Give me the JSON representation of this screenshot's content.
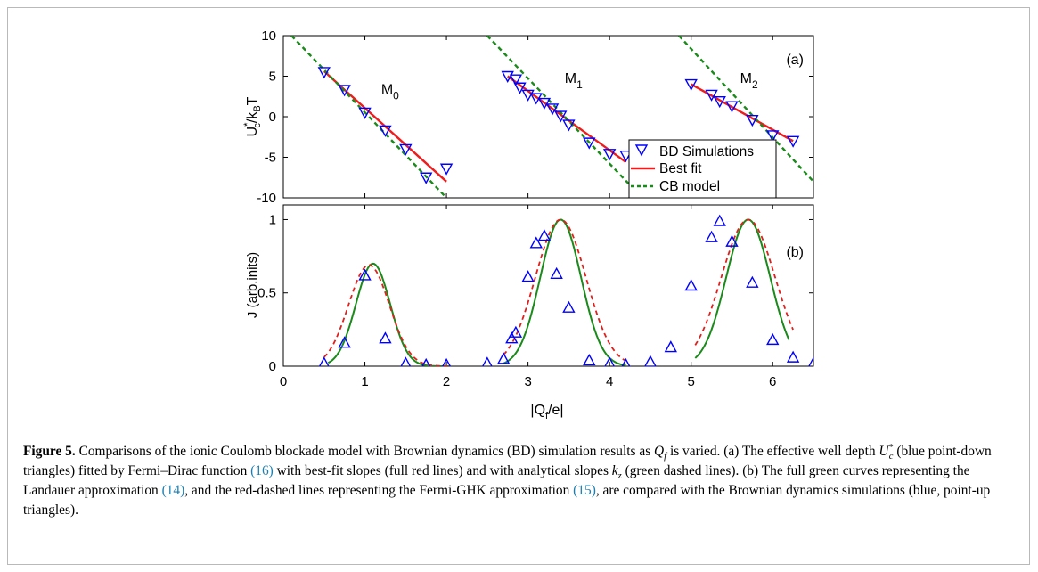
{
  "chart_data": [
    {
      "type": "line",
      "panel_label": "(a)",
      "ylabel_main": "U",
      "ylabel_sup": "*",
      "ylabel_sub": "c",
      "ylabel_rest": "/k",
      "ylabel_sub2": "B",
      "ylabel_end": "T",
      "xlim": [
        0,
        6.5
      ],
      "ylim": [
        -10,
        10
      ],
      "yticks": [
        "10",
        "5",
        "0",
        "-5",
        "-10"
      ],
      "ytick_values": [
        10,
        5,
        0,
        -5,
        -10
      ],
      "annotations": [
        {
          "base": "M",
          "sub": "0",
          "x": 1.2,
          "y": 2.8
        },
        {
          "base": "M",
          "sub": "1",
          "x": 3.45,
          "y": 4.2
        },
        {
          "base": "M",
          "sub": "2",
          "x": 5.6,
          "y": 4.2
        }
      ],
      "series": [
        {
          "name": "BD Simulations",
          "kind": "marker-down",
          "color": "#0000ff",
          "points": [
            [
              0.5,
              5.5
            ],
            [
              0.75,
              3.3
            ],
            [
              1.0,
              0.5
            ],
            [
              1.25,
              -1.7
            ],
            [
              1.5,
              -4.0
            ],
            [
              1.75,
              -7.5
            ],
            [
              2.0,
              -6.4
            ],
            [
              2.75,
              5.0
            ],
            [
              2.85,
              4.6
            ],
            [
              2.9,
              3.6
            ],
            [
              3.0,
              2.7
            ],
            [
              3.1,
              2.3
            ],
            [
              3.2,
              1.7
            ],
            [
              3.3,
              1.0
            ],
            [
              3.4,
              0.1
            ],
            [
              3.5,
              -1.0
            ],
            [
              3.75,
              -3.2
            ],
            [
              4.0,
              -4.6
            ],
            [
              4.2,
              -4.8
            ],
            [
              5.0,
              4.0
            ],
            [
              5.25,
              2.7
            ],
            [
              5.35,
              1.9
            ],
            [
              5.5,
              1.3
            ],
            [
              5.75,
              -0.4
            ],
            [
              6.0,
              -2.3
            ],
            [
              6.25,
              -3.0
            ]
          ]
        },
        {
          "name": "Best fit",
          "kind": "line",
          "color": "#ee1c1c",
          "segments": [
            [
              [
                0.5,
                5.6
              ],
              [
                2.0,
                -8.0
              ]
            ],
            [
              [
                2.75,
                5.0
              ],
              [
                4.2,
                -5.6
              ]
            ],
            [
              [
                5.0,
                4.0
              ],
              [
                6.25,
                -3.0
              ]
            ]
          ]
        },
        {
          "name": "CB model",
          "kind": "dashed",
          "color": "#1a8a1a",
          "segments": [
            [
              [
                0.1,
                10.0
              ],
              [
                2.0,
                -10.0
              ]
            ],
            [
              [
                2.5,
                10.0
              ],
              [
                4.4,
                -10.0
              ]
            ],
            [
              [
                4.85,
                10.0
              ],
              [
                6.5,
                -8.0
              ]
            ]
          ]
        }
      ],
      "legend": {
        "position": "bottom-right",
        "entries": [
          "BD Simulations",
          "Best fit",
          "CB model"
        ]
      }
    },
    {
      "type": "line",
      "panel_label": "(b)",
      "ylabel": "J (arb.inits)",
      "xlabel_pre": "|Q",
      "xlabel_sub": "f",
      "xlabel_post": "/e|",
      "xlim": [
        0,
        6.5
      ],
      "ylim": [
        0,
        1.1
      ],
      "xticks": [
        "0",
        "1",
        "2",
        "3",
        "4",
        "5",
        "6"
      ],
      "xtick_values": [
        0,
        1,
        2,
        3,
        4,
        5,
        6
      ],
      "yticks": [
        "1",
        "0.5",
        "0"
      ],
      "ytick_values": [
        1,
        0.5,
        0
      ],
      "series": [
        {
          "name": "BD Simulations",
          "kind": "marker-up",
          "color": "#0000ff",
          "points": [
            [
              0.5,
              0.02
            ],
            [
              0.75,
              0.16
            ],
            [
              1.0,
              0.62
            ],
            [
              1.25,
              0.19
            ],
            [
              1.5,
              0.02
            ],
            [
              1.75,
              0.01
            ],
            [
              2.0,
              0.01
            ],
            [
              2.5,
              0.02
            ],
            [
              2.7,
              0.05
            ],
            [
              2.8,
              0.19
            ],
            [
              2.85,
              0.23
            ],
            [
              3.0,
              0.61
            ],
            [
              3.1,
              0.84
            ],
            [
              3.2,
              0.89
            ],
            [
              3.35,
              0.63
            ],
            [
              3.5,
              0.4
            ],
            [
              3.75,
              0.04
            ],
            [
              4.0,
              0.02
            ],
            [
              4.2,
              0.01
            ],
            [
              4.5,
              0.03
            ],
            [
              4.75,
              0.13
            ],
            [
              5.0,
              0.55
            ],
            [
              5.25,
              0.88
            ],
            [
              5.35,
              0.99
            ],
            [
              5.5,
              0.85
            ],
            [
              5.75,
              0.57
            ],
            [
              6.0,
              0.18
            ],
            [
              6.25,
              0.06
            ],
            [
              6.5,
              0.02
            ]
          ]
        },
        {
          "name": "Landauer",
          "kind": "line",
          "color": "#1a8a1a",
          "peaks": [
            {
              "center": 1.1,
              "amp": 0.7,
              "width": 0.21,
              "from": 0.55,
              "to": 2.05
            },
            {
              "center": 3.4,
              "amp": 1.0,
              "width": 0.25,
              "from": 2.7,
              "to": 4.2
            },
            {
              "center": 5.7,
              "amp": 1.0,
              "width": 0.27,
              "from": 5.05,
              "to": 6.2
            }
          ]
        },
        {
          "name": "Fermi-GHK",
          "kind": "dashed",
          "color": "#e0201c",
          "peaks": [
            {
              "center": 1.05,
              "amp": 0.69,
              "width": 0.25,
              "from": 0.5,
              "to": 2.05
            },
            {
              "center": 3.4,
              "amp": 1.0,
              "width": 0.31,
              "from": 2.7,
              "to": 4.2
            },
            {
              "center": 5.7,
              "amp": 1.0,
              "width": 0.33,
              "from": 5.05,
              "to": 6.25
            }
          ]
        }
      ]
    }
  ],
  "caption": {
    "label": "Figure 5.",
    "s1": " Comparisons of the ionic Coulomb blockade model with Brownian dynamics (BD) simulation results as ",
    "q": "Q",
    "qsub": "f",
    "s2": " is varied. (a) The effective well depth ",
    "u": "U",
    "usup": "*",
    "usub": "c",
    "s3": " (blue point-down triangles) fitted by Fermi–Dirac function ",
    "ref16": "(16)",
    "s4": " with best-fit slopes (full red lines) and with analytical slopes ",
    "k": "k",
    "ksub": "z",
    "s5": " (green dashed lines). (b) The full green curves representing the Landauer approximation ",
    "ref14": "(14)",
    "s6": ", and the red-dashed lines representing the Fermi-GHK approximation ",
    "ref15": "(15)",
    "s7": ", are compared with the Brownian dynamics simulations (blue, point-up triangles)."
  }
}
